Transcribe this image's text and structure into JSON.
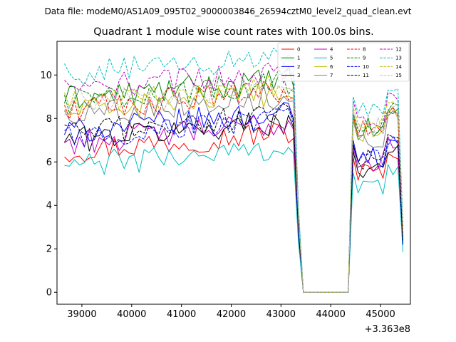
{
  "chart_data": {
    "type": "line",
    "suptitle": "Data file: modeM0/AS1A09_095T02_9000003846_26594cztM0_level2_quad_clean.evt",
    "title": "Quadrant 1 module wise count rates with 100.0s bins.",
    "xlabel": "",
    "ylabel": "",
    "x_offset_label": "+3.363e8",
    "xlim": [
      38500,
      45600
    ],
    "ylim": [
      -0.55,
      11.55
    ],
    "x_ticks": [
      39000,
      40000,
      41000,
      42000,
      43000,
      44000,
      45000
    ],
    "x_tick_labels": [
      "39000",
      "40000",
      "41000",
      "42000",
      "43000",
      "44000",
      "45000"
    ],
    "y_ticks": [
      0,
      2,
      4,
      6,
      8,
      10
    ],
    "y_tick_labels": [
      "0",
      "2",
      "4",
      "6",
      "8",
      "10"
    ],
    "legend_position": "top-right",
    "legend_columns": 4,
    "grid": false,
    "segments": [
      {
        "x_start": 38650,
        "x_end": 43250,
        "step": 100
      },
      {
        "x_start": 43250,
        "x_end": 43450,
        "step": 100
      },
      {
        "x_start": 43450,
        "x_end": 44350,
        "step": 100
      },
      {
        "x_start": 44350,
        "x_end": 44450,
        "step": 100
      },
      {
        "x_start": 44450,
        "x_end": 45450,
        "step": 100
      }
    ],
    "series": [
      {
        "name": "0",
        "color": "#ff0000",
        "dash": "solid",
        "base1": 6.5,
        "base2": 5.5,
        "end": 2.4
      },
      {
        "name": "1",
        "color": "#008000",
        "dash": "solid",
        "base1": 8.9,
        "base2": 7.5,
        "end": 2.5
      },
      {
        "name": "2",
        "color": "#0000ff",
        "dash": "solid",
        "base1": 7.4,
        "base2": 6.3,
        "end": 2.3
      },
      {
        "name": "3",
        "color": "#000000",
        "dash": "solid",
        "base1": 7.0,
        "base2": 5.8,
        "end": 2.2
      },
      {
        "name": "4",
        "color": "#bf00bf",
        "dash": "solid",
        "base1": 6.9,
        "base2": 6.0,
        "end": 2.3
      },
      {
        "name": "5",
        "color": "#00bfbf",
        "dash": "solid",
        "base1": 5.8,
        "base2": 4.8,
        "end": 1.85
      },
      {
        "name": "6",
        "color": "#bfbf00",
        "dash": "solid",
        "base1": 8.3,
        "base2": 7.3,
        "end": 2.6
      },
      {
        "name": "7",
        "color": "#808080",
        "dash": "solid",
        "base1": 8.2,
        "base2": 7.2,
        "end": 2.6
      },
      {
        "name": "8",
        "color": "#ff0000",
        "dash": "dashed",
        "base1": 8.4,
        "base2": 7.4,
        "end": 2.8
      },
      {
        "name": "9",
        "color": "#008000",
        "dash": "dashed",
        "base1": 8.8,
        "base2": 7.6,
        "end": 2.8
      },
      {
        "name": "10",
        "color": "#0000ff",
        "dash": "dashed",
        "base1": 7.1,
        "base2": 6.1,
        "end": 2.2
      },
      {
        "name": "11",
        "color": "#000000",
        "dash": "dashed",
        "base1": 7.3,
        "base2": 6.1,
        "end": 2.3
      },
      {
        "name": "12",
        "color": "#bf00bf",
        "dash": "dashed",
        "base1": 9.3,
        "base2": 8.1,
        "end": 3.0
      },
      {
        "name": "13",
        "color": "#00bfbf",
        "dash": "dashed",
        "base1": 10.0,
        "base2": 8.3,
        "end": 3.1
      },
      {
        "name": "14",
        "color": "#bfbf00",
        "dash": "dashed",
        "base1": 8.6,
        "base2": 7.8,
        "end": 2.9
      },
      {
        "name": "15",
        "color": "#bfbfbf",
        "dash": "dashed",
        "base1": 8.7,
        "base2": 7.6,
        "end": 2.8
      }
    ]
  }
}
